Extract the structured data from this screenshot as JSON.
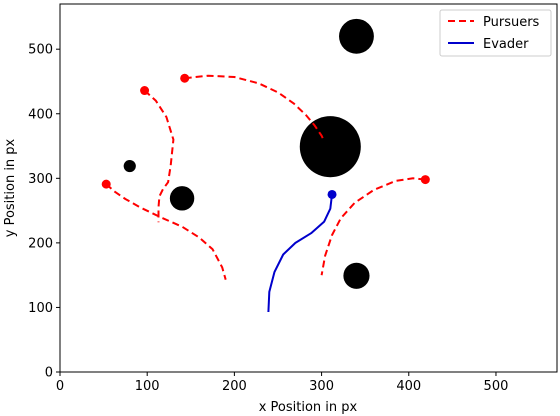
{
  "chart_data": {
    "type": "line",
    "title": "",
    "xlabel": "x Position in px",
    "ylabel": "y Position in px",
    "xlim": [
      0,
      570
    ],
    "ylim": [
      0,
      570
    ],
    "xticks": [
      0,
      100,
      200,
      300,
      400,
      500
    ],
    "yticks": [
      0,
      100,
      200,
      300,
      400,
      500
    ],
    "legend": {
      "placement": "top-right",
      "entries": [
        {
          "label": "Pursuers",
          "color": "#ff0000",
          "style": "dashed"
        },
        {
          "label": "Evader",
          "color": "#0000cc",
          "style": "solid"
        }
      ]
    },
    "series": [
      {
        "name": "Pursuers",
        "color": "#ff0000",
        "style": "dashed",
        "paths": [
          {
            "points": [
              [
                97,
                436
              ],
              [
                110,
                420
              ],
              [
                122,
                395
              ],
              [
                130,
                360
              ],
              [
                127,
                320
              ],
              [
                124,
                294
              ],
              [
                118,
                283
              ],
              [
                114,
                272
              ],
              [
                113,
                255
              ],
              [
                113,
                232
              ]
            ],
            "start": [
              97,
              436
            ]
          },
          {
            "points": [
              [
                53,
                291
              ],
              [
                62,
                280
              ],
              [
                75,
                268
              ],
              [
                92,
                255
              ],
              [
                115,
                240
              ],
              [
                140,
                225
              ],
              [
                160,
                208
              ],
              [
                175,
                190
              ],
              [
                186,
                162
              ],
              [
                190,
                143
              ]
            ],
            "start": [
              53,
              291
            ]
          },
          {
            "points": [
              [
                143,
                455
              ],
              [
                170,
                459
              ],
              [
                200,
                457
              ],
              [
                228,
                447
              ],
              [
                250,
                433
              ],
              [
                268,
                416
              ],
              [
                282,
                398
              ],
              [
                292,
                382
              ],
              [
                300,
                366
              ],
              [
                303,
                357
              ]
            ],
            "start": [
              143,
              455
            ]
          },
          {
            "points": [
              [
                419,
                298
              ],
              [
                405,
                300
              ],
              [
                385,
                296
              ],
              [
                360,
                282
              ],
              [
                338,
                262
              ],
              [
                322,
                238
              ],
              [
                312,
                212
              ],
              [
                304,
                180
              ],
              [
                300,
                150
              ]
            ],
            "start": [
              419,
              298
            ]
          }
        ]
      },
      {
        "name": "Evader",
        "color": "#0000cc",
        "style": "solid",
        "paths": [
          {
            "points": [
              [
                239,
                93
              ],
              [
                240,
                124
              ],
              [
                246,
                155
              ],
              [
                256,
                182
              ],
              [
                270,
                200
              ],
              [
                288,
                215
              ],
              [
                303,
                233
              ],
              [
                310,
                253
              ],
              [
                312,
                275
              ]
            ],
            "start": [
              312,
              275
            ]
          }
        ]
      }
    ],
    "obstacles": [
      {
        "x": 340,
        "y": 520,
        "r": 20
      },
      {
        "x": 310,
        "y": 349,
        "r": 35
      },
      {
        "x": 140,
        "y": 269,
        "r": 14
      },
      {
        "x": 80,
        "y": 319,
        "r": 7
      },
      {
        "x": 340,
        "y": 149,
        "r": 15
      }
    ],
    "colors": {
      "pursuer": "#ff0000",
      "evader": "#0000cc",
      "obstacle": "#000000"
    }
  }
}
